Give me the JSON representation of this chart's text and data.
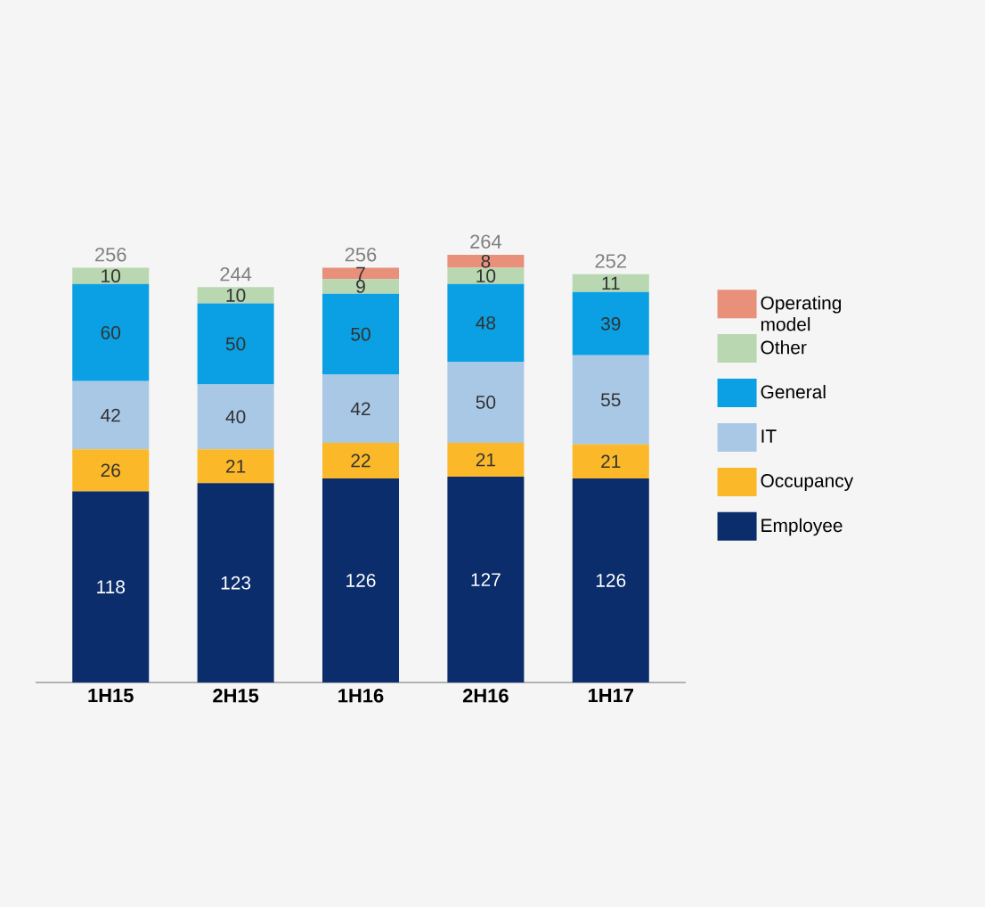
{
  "chart_data": {
    "type": "bar",
    "stacked": true,
    "data_labels": true,
    "legend": "right",
    "categories": [
      "1H15",
      "2H15",
      "1H16",
      "2H16",
      "1H17"
    ],
    "series": [
      {
        "name": "Employee",
        "color": "#0b2d6b",
        "values": [
          118,
          123,
          126,
          127,
          126
        ]
      },
      {
        "name": "Occupancy",
        "color": "#fbb829",
        "values": [
          26,
          21,
          22,
          21,
          21
        ]
      },
      {
        "name": "IT",
        "color": "#a8c8e6",
        "values": [
          42,
          40,
          42,
          50,
          55
        ]
      },
      {
        "name": "General",
        "color": "#0aa0e3",
        "values": [
          60,
          50,
          50,
          48,
          39
        ]
      },
      {
        "name": "Other",
        "color": "#b9d7b0",
        "values": [
          10,
          10,
          9,
          10,
          11
        ]
      },
      {
        "name": "Operating model",
        "color": "#e8907a",
        "values": [
          null,
          null,
          7,
          8,
          null
        ]
      }
    ],
    "totals": [
      "256",
      "244",
      "256",
      "264",
      "252"
    ]
  }
}
